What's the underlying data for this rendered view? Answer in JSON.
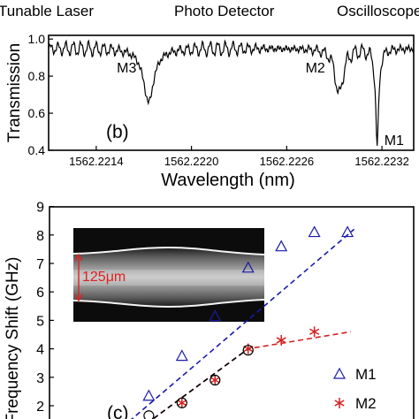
{
  "header": {
    "left": "Tunable Laser",
    "center": "Photo Detector",
    "right": "Oscilloscope"
  },
  "chart_data": [
    {
      "type": "line",
      "panel_label": "(b)",
      "xlabel": "Wavelength (nm)",
      "ylabel": "Transmission",
      "xlim": [
        1562.2211,
        1562.2234
      ],
      "ylim": [
        0.4,
        1.02
      ],
      "xticks": [
        {
          "value": 1562.2214,
          "label": "1562.2214"
        },
        {
          "value": 1562.222,
          "label": "1562.2220"
        },
        {
          "value": 1562.2226,
          "label": "1562.2226"
        },
        {
          "value": 1562.2232,
          "label": "1562.2232"
        }
      ],
      "yticks": [
        {
          "value": 0.4,
          "label": "0.4"
        },
        {
          "value": 0.6,
          "label": "0.6"
        },
        {
          "value": 0.8,
          "label": "0.8"
        },
        {
          "value": 1.0,
          "label": "1.0"
        }
      ],
      "dips": [
        {
          "name": "M3",
          "x": 1562.22173,
          "y": 0.66,
          "width": 8e-05
        },
        {
          "name": "M2",
          "x": 1562.22293,
          "y": 0.7,
          "width": 6e-05
        },
        {
          "name": "M1",
          "x": 1562.22317,
          "y": 0.41,
          "width": 2.2e-05
        }
      ],
      "baseline": 0.95,
      "ripple": 0.035,
      "line_color": "#000000"
    },
    {
      "type": "scatter",
      "panel_label": "(c)",
      "ylabel": "Frequency Shift (GHz)",
      "ylim": [
        1.5,
        9
      ],
      "xlim": [
        0,
        11
      ],
      "yticks": [
        {
          "value": 2,
          "label": "2"
        },
        {
          "value": 3,
          "label": "3"
        },
        {
          "value": 4,
          "label": "4"
        },
        {
          "value": 5,
          "label": "5"
        },
        {
          "value": 6,
          "label": "6"
        },
        {
          "value": 7,
          "label": "7"
        },
        {
          "value": 8,
          "label": "8"
        },
        {
          "value": 9,
          "label": "9"
        }
      ],
      "series": [
        {
          "name": "M1",
          "color": "#1a1aa8",
          "marker": "triangle",
          "x": [
            3,
            4,
            5,
            6,
            7,
            8,
            9
          ],
          "y": [
            2.35,
            3.75,
            5.15,
            6.85,
            7.6,
            8.1,
            8.1
          ],
          "fit_x": [
            2,
            9.2
          ],
          "fit_y": [
            1.05,
            8.2
          ]
        },
        {
          "name": "M2",
          "color": "#d42020",
          "marker": "star",
          "x": [
            4,
            5,
            6,
            7,
            8
          ],
          "y": [
            2.1,
            2.9,
            4.0,
            4.3,
            4.6
          ],
          "fit_x": [
            2.5,
            6,
            9.1
          ],
          "fit_y": [
            1.0,
            4.0,
            4.6
          ]
        },
        {
          "name": "",
          "color": "#000000",
          "marker": "circle",
          "x": [
            3,
            4,
            5,
            6
          ],
          "y": [
            1.65,
            2.1,
            2.9,
            3.95
          ],
          "fit_x": [
            2.5,
            6
          ],
          "fit_y": [
            1.0,
            4.0
          ]
        }
      ],
      "legend": [
        {
          "label": "M1",
          "marker": "triangle",
          "color": "#1a1aa8"
        },
        {
          "label": "M2",
          "marker": "star",
          "color": "#d42020"
        }
      ],
      "inset": {
        "label": "125μm",
        "arrow_color": "#e02020"
      }
    }
  ]
}
